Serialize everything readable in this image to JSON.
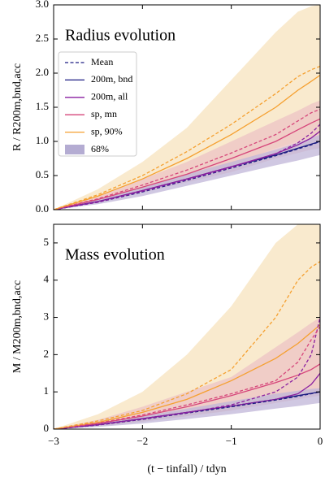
{
  "chart_data": [
    {
      "type": "line",
      "title": "Radius evolution",
      "ylabel": "R / R200m,bnd,acc",
      "x": [
        -3,
        -2.5,
        -2,
        -1.5,
        -1,
        -0.5,
        -0.25,
        -0.1,
        0
      ],
      "xlim": [
        -3,
        0
      ],
      "xticks": [
        -3,
        -2,
        -1,
        0
      ],
      "ylim": [
        0,
        3
      ],
      "yticks": [
        {
          "value": 0,
          "label": "0.0"
        },
        {
          "value": 0.5,
          "label": "0.5"
        },
        {
          "value": 1,
          "label": "1.0"
        },
        {
          "value": 1.5,
          "label": "1.5"
        },
        {
          "value": 2,
          "label": "2.0"
        },
        {
          "value": 2.5,
          "label": "2.5"
        },
        {
          "value": 3,
          "label": "3.0"
        }
      ],
      "legend": {
        "mean_label": "Mean",
        "band_label": "68%",
        "band_color": "#b4acd2"
      },
      "bands": [
        {
          "color": "#f7e3bd",
          "lower": [
            0,
            0.12,
            0.28,
            0.45,
            0.65,
            0.9,
            1.0,
            1.06,
            1.1
          ],
          "upper": [
            0,
            0.3,
            0.7,
            1.2,
            1.9,
            2.6,
            2.9,
            2.98,
            3.0
          ]
        },
        {
          "color": "#ecc3c4",
          "lower": [
            0,
            0.1,
            0.25,
            0.4,
            0.55,
            0.75,
            0.83,
            0.88,
            0.9
          ],
          "upper": [
            0,
            0.2,
            0.45,
            0.7,
            1.0,
            1.3,
            1.45,
            1.55,
            1.6
          ]
        },
        {
          "color": "#c0b6d8",
          "lower": [
            0,
            0.08,
            0.2,
            0.35,
            0.5,
            0.65,
            0.72,
            0.77,
            0.8
          ],
          "upper": [
            0,
            0.15,
            0.33,
            0.52,
            0.7,
            0.88,
            0.98,
            1.05,
            1.1
          ]
        }
      ],
      "series": [
        {
          "name": "200m, bnd",
          "color": "#1c1c82",
          "values": [
            0,
            0.12,
            0.28,
            0.45,
            0.63,
            0.8,
            0.9,
            0.96,
            1.0
          ]
        },
        {
          "name": "200m, all",
          "color": "#8a1fa0",
          "values": [
            0,
            0.12,
            0.28,
            0.45,
            0.63,
            0.82,
            0.95,
            1.05,
            1.15
          ]
        },
        {
          "name": "sp, mn",
          "color": "#d6457a",
          "values": [
            0,
            0.15,
            0.33,
            0.52,
            0.75,
            1.0,
            1.17,
            1.27,
            1.33
          ]
        },
        {
          "name": "sp, 90%",
          "color": "#f5a030",
          "values": [
            0,
            0.2,
            0.45,
            0.75,
            1.1,
            1.5,
            1.75,
            1.88,
            1.97
          ]
        },
        {
          "color": "#1c1c82",
          "dashed": true,
          "values": [
            0,
            0.11,
            0.26,
            0.43,
            0.61,
            0.79,
            0.89,
            0.95,
            1.0
          ]
        },
        {
          "color": "#8a1fa0",
          "dashed": true,
          "values": [
            0,
            0.11,
            0.27,
            0.44,
            0.62,
            0.82,
            0.98,
            1.12,
            1.25
          ]
        },
        {
          "color": "#d6457a",
          "dashed": true,
          "values": [
            0,
            0.16,
            0.36,
            0.58,
            0.83,
            1.1,
            1.3,
            1.42,
            1.47
          ]
        },
        {
          "color": "#f5a030",
          "dashed": true,
          "values": [
            0,
            0.22,
            0.5,
            0.85,
            1.25,
            1.7,
            1.95,
            2.05,
            2.1
          ]
        }
      ]
    },
    {
      "type": "line",
      "title": "Mass evolution",
      "ylabel": "M / M200m,bnd,acc",
      "xlabel": "(t − tinfall) / tdyn",
      "x": [
        -3,
        -2.5,
        -2,
        -1.5,
        -1,
        -0.5,
        -0.25,
        -0.1,
        0
      ],
      "xlim": [
        -3,
        0
      ],
      "xticks": [
        {
          "value": -3,
          "label": "−3"
        },
        {
          "value": -2,
          "label": "−2"
        },
        {
          "value": -1,
          "label": "−1"
        },
        0
      ],
      "ylim": [
        0,
        5.5
      ],
      "yticks": [
        0,
        1,
        2,
        3,
        4,
        5
      ],
      "bands": [
        {
          "color": "#f7e3bd",
          "lower": [
            0,
            0.08,
            0.2,
            0.35,
            0.5,
            0.8,
            0.9,
            0.97,
            1.0
          ],
          "upper": [
            0,
            0.4,
            1.0,
            2.0,
            3.3,
            5.0,
            5.5,
            5.5,
            5.5
          ]
        },
        {
          "color": "#ecc3c4",
          "lower": [
            0,
            0.08,
            0.2,
            0.35,
            0.5,
            0.7,
            0.8,
            0.86,
            0.9
          ],
          "upper": [
            0,
            0.25,
            0.6,
            1.0,
            1.4,
            2.2,
            2.6,
            2.85,
            3.0
          ]
        },
        {
          "color": "#c0b6d8",
          "lower": [
            0,
            0.06,
            0.15,
            0.27,
            0.4,
            0.55,
            0.62,
            0.67,
            0.7
          ],
          "upper": [
            0,
            0.15,
            0.35,
            0.55,
            0.75,
            0.95,
            1.03,
            1.08,
            1.1
          ]
        }
      ],
      "series": [
        {
          "color": "#1c1c82",
          "values": [
            0,
            0.12,
            0.28,
            0.45,
            0.62,
            0.8,
            0.9,
            0.96,
            1.0
          ]
        },
        {
          "color": "#8a1fa0",
          "values": [
            0,
            0.12,
            0.28,
            0.45,
            0.62,
            0.8,
            0.95,
            1.2,
            1.5
          ]
        },
        {
          "color": "#d6457a",
          "values": [
            0,
            0.15,
            0.35,
            0.6,
            0.9,
            1.25,
            1.45,
            1.6,
            1.75
          ]
        },
        {
          "color": "#f5a030",
          "values": [
            0,
            0.18,
            0.45,
            0.8,
            1.3,
            1.9,
            2.3,
            2.6,
            2.8
          ]
        },
        {
          "color": "#1c1c82",
          "dashed": true,
          "values": [
            0,
            0.11,
            0.26,
            0.43,
            0.6,
            0.78,
            0.88,
            0.95,
            1.0
          ]
        },
        {
          "color": "#8a1fa0",
          "dashed": true,
          "values": [
            0,
            0.11,
            0.27,
            0.44,
            0.65,
            1.0,
            1.4,
            2.0,
            3.0
          ]
        },
        {
          "color": "#d6457a",
          "dashed": true,
          "values": [
            0,
            0.16,
            0.38,
            0.65,
            0.95,
            1.3,
            1.8,
            2.4,
            2.75
          ]
        },
        {
          "color": "#f5a030",
          "dashed": true,
          "values": [
            0,
            0.22,
            0.5,
            0.95,
            1.6,
            3.0,
            4.0,
            4.35,
            4.5
          ]
        }
      ]
    }
  ]
}
